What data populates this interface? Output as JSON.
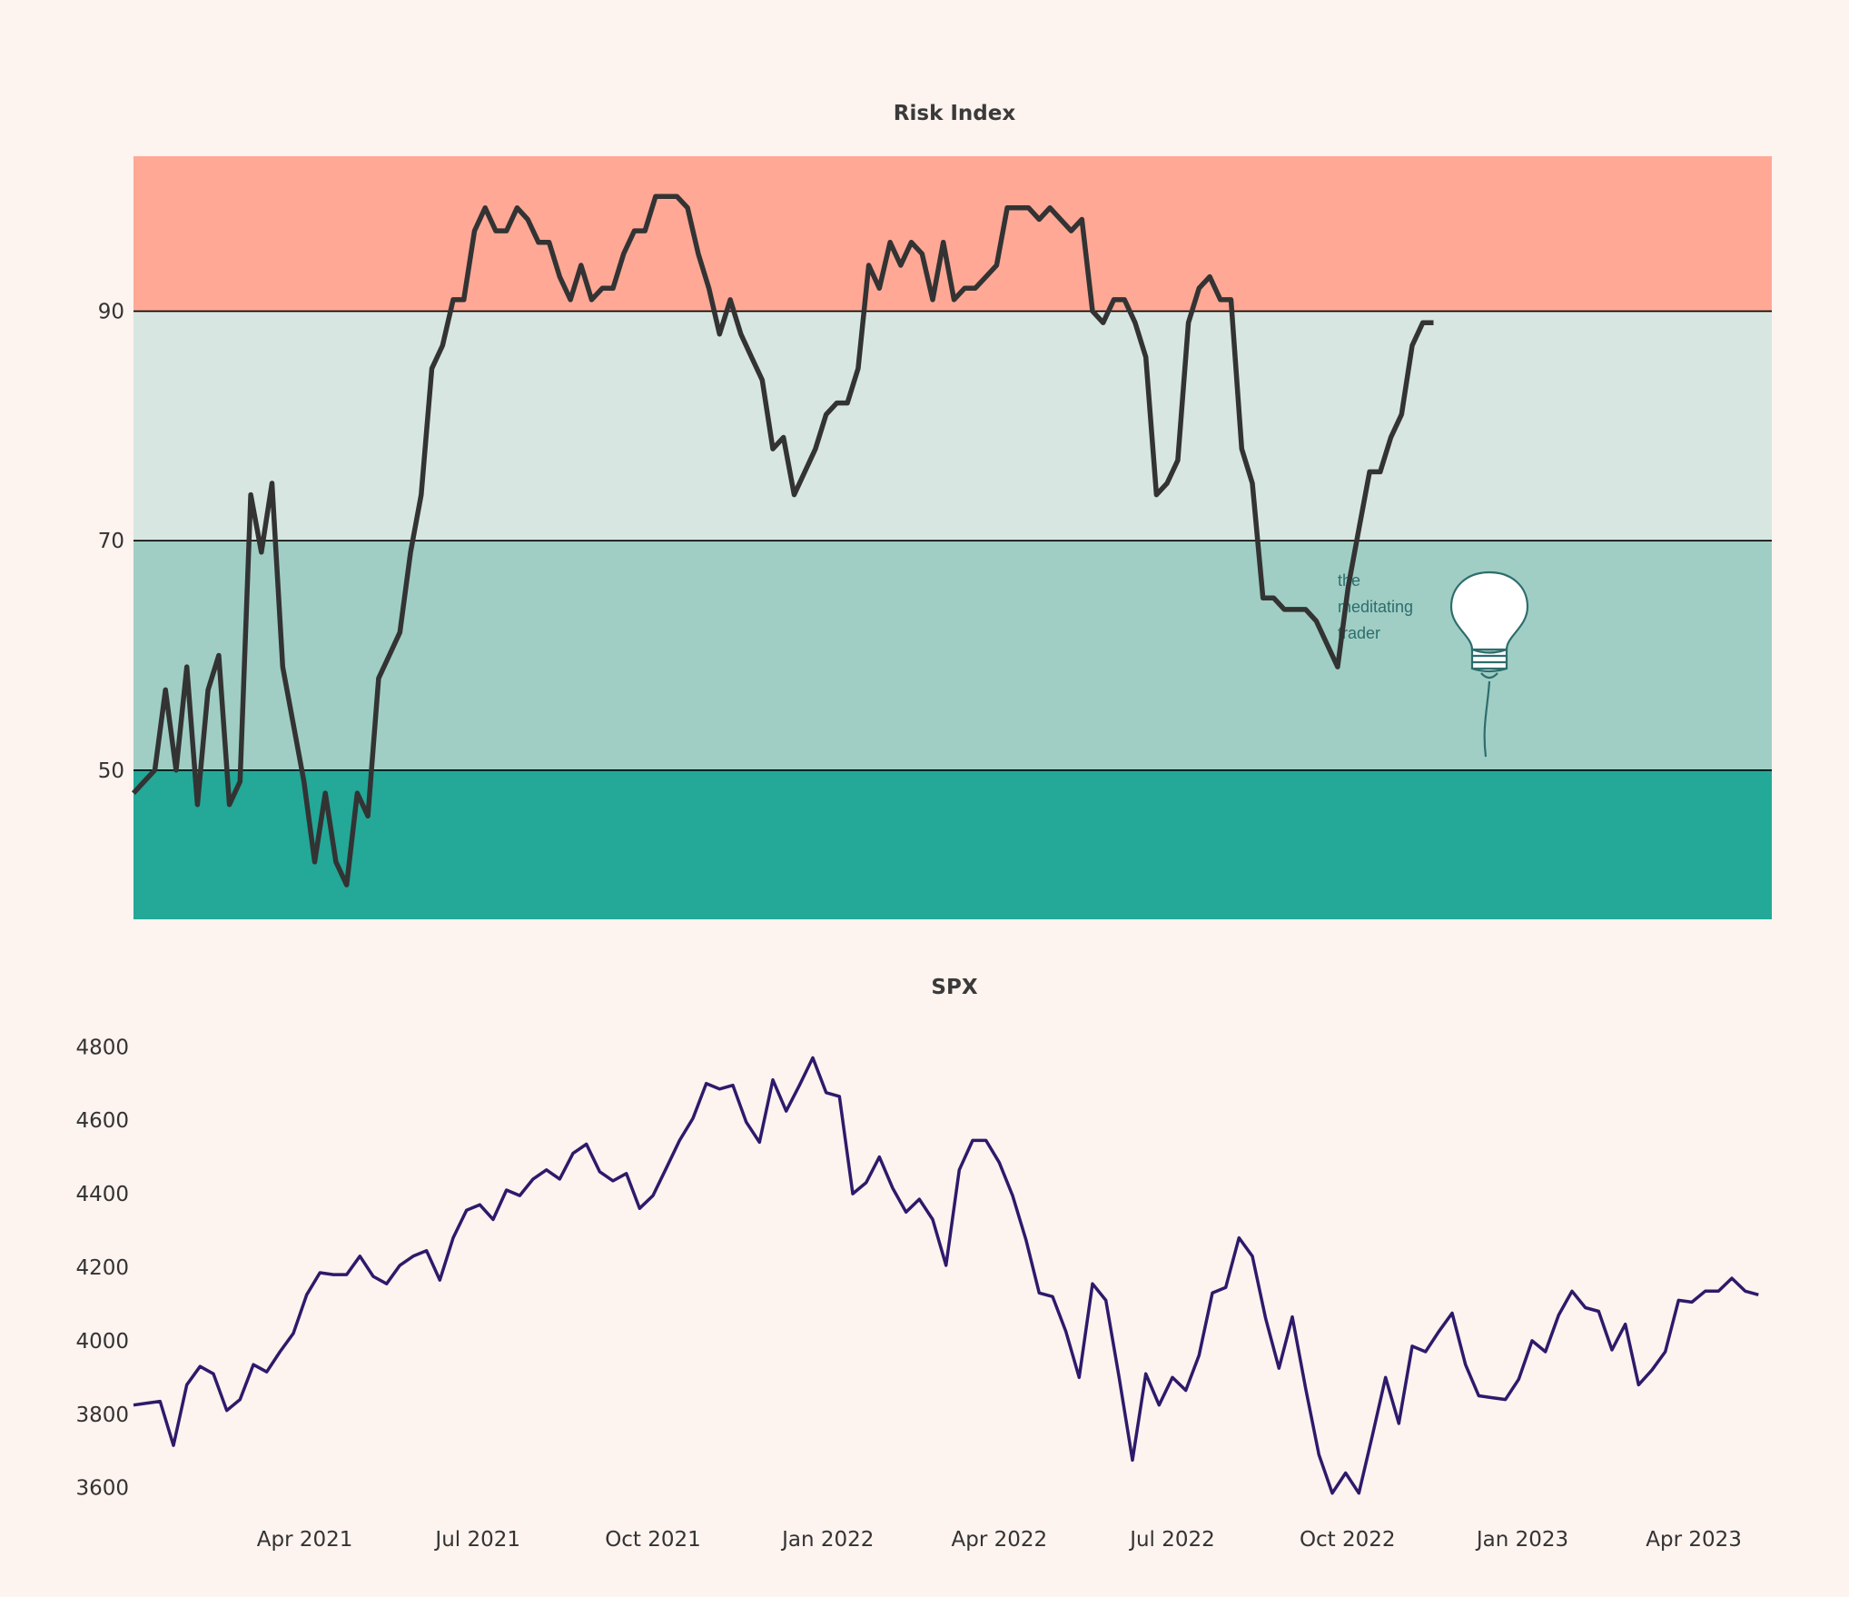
{
  "colors": {
    "background": "#fdf3ef",
    "zone_high": "#ffa896",
    "zone_mid_high": "#d7e6e0",
    "zone_mid_low": "#a0cec4",
    "zone_low": "#24a898",
    "risk_line": "#333333",
    "spx_line": "#2d1a6b",
    "logo": "#2e6d6d"
  },
  "logo": {
    "lines": [
      "the",
      "meditating",
      "trader"
    ],
    "icon": "lightbulb-icon"
  },
  "chart_data": [
    {
      "type": "line",
      "title": "Risk Index",
      "xlim": [
        "2021-01-01",
        "2023-05-12"
      ],
      "ylim": [
        37,
        103.5
      ],
      "yticks": [
        50,
        70,
        90
      ],
      "zones": [
        {
          "from": 90,
          "to": 103.5,
          "color_key": "zone_high"
        },
        {
          "from": 70,
          "to": 90,
          "color_key": "zone_mid_high"
        },
        {
          "from": 50,
          "to": 70,
          "color_key": "zone_mid_low"
        },
        {
          "from": 37,
          "to": 50,
          "color_key": "zone_low"
        }
      ],
      "series": [
        {
          "name": "Risk Index",
          "start": "2021-01-01",
          "step_days": 5.6,
          "values": [
            48,
            49,
            50,
            57,
            50,
            59,
            47,
            57,
            60,
            47,
            49,
            74,
            69,
            75,
            59,
            54,
            49,
            42,
            48,
            42,
            40,
            48,
            46,
            58,
            60,
            62,
            69,
            74,
            85,
            87,
            91,
            91,
            97,
            99,
            97,
            97,
            99,
            98,
            96,
            96,
            93,
            91,
            94,
            91,
            92,
            92,
            95,
            97,
            97,
            100,
            100,
            100,
            99,
            95,
            92,
            88,
            91,
            88,
            86,
            84,
            78,
            79,
            74,
            76,
            78,
            81,
            82,
            82,
            85,
            94,
            92,
            96,
            94,
            96,
            95,
            91,
            96,
            91,
            92,
            92,
            93,
            94,
            99,
            99,
            99,
            98,
            99,
            98,
            97,
            98,
            90,
            89,
            91,
            91,
            89,
            86,
            74,
            75,
            77,
            89,
            92,
            93,
            91,
            91,
            78,
            75,
            65,
            65,
            64,
            64,
            64,
            63,
            61,
            59,
            66,
            71,
            76,
            76,
            79,
            81,
            87,
            89,
            89
          ]
        }
      ]
    },
    {
      "type": "line",
      "title": "SPX",
      "xlim": [
        "2021-01-01",
        "2023-05-12"
      ],
      "ylim": [
        3525,
        4860
      ],
      "yticks": [
        3600,
        3800,
        4000,
        4200,
        4400,
        4600,
        4800
      ],
      "xticks": [
        {
          "date": "2021-04-01",
          "label": "Apr 2021"
        },
        {
          "date": "2021-07-01",
          "label": "Jul 2021"
        },
        {
          "date": "2021-10-01",
          "label": "Oct 2021"
        },
        {
          "date": "2022-01-01",
          "label": "Jan 2022"
        },
        {
          "date": "2022-04-01",
          "label": "Apr 2022"
        },
        {
          "date": "2022-07-01",
          "label": "Jul 2022"
        },
        {
          "date": "2022-10-01",
          "label": "Oct 2022"
        },
        {
          "date": "2023-01-01",
          "label": "Jan 2023"
        },
        {
          "date": "2023-04-01",
          "label": "Apr 2023"
        }
      ],
      "series": [
        {
          "name": "SPX",
          "start": "2021-01-01",
          "step_days": 7,
          "values": [
            3825,
            3830,
            3835,
            3715,
            3880,
            3930,
            3910,
            3810,
            3840,
            3935,
            3915,
            3970,
            4020,
            4125,
            4185,
            4180,
            4180,
            4230,
            4175,
            4155,
            4205,
            4230,
            4245,
            4165,
            4280,
            4355,
            4370,
            4330,
            4410,
            4395,
            4440,
            4465,
            4440,
            4510,
            4535,
            4460,
            4435,
            4455,
            4360,
            4395,
            4470,
            4545,
            4605,
            4700,
            4685,
            4695,
            4595,
            4540,
            4710,
            4625,
            4695,
            4770,
            4675,
            4665,
            4400,
            4430,
            4500,
            4415,
            4350,
            4385,
            4330,
            4205,
            4465,
            4545,
            4545,
            4485,
            4395,
            4275,
            4130,
            4120,
            4025,
            3900,
            4155,
            4110,
            3900,
            3675,
            3910,
            3825,
            3900,
            3865,
            3960,
            4130,
            4145,
            4280,
            4230,
            4060,
            3925,
            4065,
            3870,
            3690,
            3585,
            3640,
            3585,
            3740,
            3900,
            3775,
            3985,
            3970,
            4025,
            4075,
            3935,
            3850,
            3845,
            3840,
            3895,
            4000,
            3970,
            4070,
            4135,
            4090,
            4080,
            3975,
            4045,
            3880,
            3920,
            3970,
            4110,
            4105,
            4135,
            4135,
            4170,
            4135,
            4125
          ]
        }
      ]
    }
  ]
}
